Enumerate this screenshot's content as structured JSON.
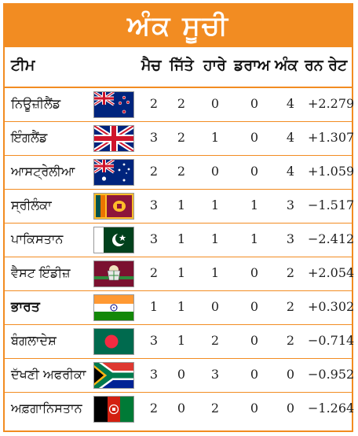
{
  "title": "ਅੰਕ ਸੂਚੀ",
  "headers": {
    "team": "ਟੀਮ",
    "matches": "ਮੈਚ",
    "won": "ਜਿੱਤੇ",
    "lost": "ਹਾਰੇ",
    "draw": "ਡਰਾਅ",
    "points": "ਅੰਕ",
    "run_rate": "ਰਨ ਰੇਟ"
  },
  "rows": [
    {
      "team": "ਨਿਊਜ਼ੀਲੈਂਡ",
      "flag": "new-zealand-flag",
      "matches": "2",
      "won": "2",
      "lost": "0",
      "draw": "0",
      "points": "4",
      "run_rate": "+2.279"
    },
    {
      "team": "ਇੰਗਲੈਂਡ",
      "flag": "uk-flag",
      "matches": "3",
      "won": "2",
      "lost": "1",
      "draw": "0",
      "points": "4",
      "run_rate": "+1.307"
    },
    {
      "team": "ਆਸਟ੍ਰੇਲੀਆ",
      "flag": "australia-flag",
      "matches": "2",
      "won": "2",
      "lost": "0",
      "draw": "0",
      "points": "4",
      "run_rate": "+1.059"
    },
    {
      "team": "ਸ੍ਰੀਲੰਕਾ",
      "flag": "sri-lanka-flag",
      "matches": "3",
      "won": "1",
      "lost": "1",
      "draw": "1",
      "points": "3",
      "run_rate": "−1.517"
    },
    {
      "team": "ਪਾਕਿਸਤਾਨ",
      "flag": "pakistan-flag",
      "matches": "3",
      "won": "1",
      "lost": "1",
      "draw": "1",
      "points": "3",
      "run_rate": "−2.412"
    },
    {
      "team": "ਵੈਸਟ ਇੰਡੀਜ਼",
      "flag": "west-indies-flag",
      "matches": "2",
      "won": "1",
      "lost": "1",
      "draw": "0",
      "points": "2",
      "run_rate": "+2.054"
    },
    {
      "team": "ਭਾਰਤ",
      "flag": "india-flag",
      "matches": "1",
      "won": "1",
      "lost": "0",
      "draw": "0",
      "points": "2",
      "run_rate": "+0.302",
      "bold": true
    },
    {
      "team": "ਬੰਗਲਾਦੇਸ਼",
      "flag": "bangladesh-flag",
      "matches": "3",
      "won": "1",
      "lost": "2",
      "draw": "0",
      "points": "2",
      "run_rate": "−0.714"
    },
    {
      "team": "ਦੱਖਣੀ ਅਫਰੀਕਾ",
      "flag": "south-africa-flag",
      "matches": "3",
      "won": "0",
      "lost": "3",
      "draw": "0",
      "points": "0",
      "run_rate": "−0.952"
    },
    {
      "team": "ਅਫ਼ਗਾਨਿਸਤਾਨ",
      "flag": "afghanistan-flag",
      "matches": "2",
      "won": "0",
      "lost": "2",
      "draw": "0",
      "points": "0",
      "run_rate": "−1.264"
    }
  ],
  "colors": {
    "accent": "#f28c22"
  }
}
